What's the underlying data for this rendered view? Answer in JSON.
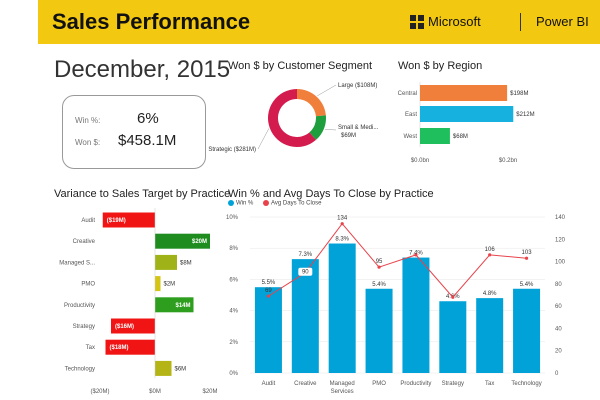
{
  "header": {
    "title": "Sales Performance",
    "brand": "Microsoft",
    "product": "Power BI",
    "color": "#f2c811"
  },
  "date_title": "December, 2015",
  "kpi": {
    "win_pct_label": "Win %:",
    "win_pct_value": "6%",
    "won_label": "Won $:",
    "won_value": "$458.1M"
  },
  "titles": {
    "segment": "Won $ by Customer Segment",
    "region": "Won $ by Region",
    "variance": "Variance to Sales Target by Practice",
    "winpct": "Win % and Avg Days To Close by Practice"
  },
  "chart_data": [
    {
      "type": "pie",
      "title": "Won $ by Customer Segment",
      "categories": [
        "Large",
        "Small & Medi...",
        "Strategic"
      ],
      "values": [
        108,
        69,
        281
      ],
      "data_labels": [
        "Large ($108M)",
        "Small & Medi... $69M",
        "Strategic ($281M)"
      ],
      "colors": [
        "#f07f3c",
        "#1f9e3e",
        "#d41b4d"
      ],
      "donut": true
    },
    {
      "type": "bar",
      "orientation": "horizontal",
      "title": "Won $ by Region",
      "categories": [
        "Central",
        "East",
        "West"
      ],
      "values": [
        198,
        212,
        68
      ],
      "data_labels": [
        "$198M",
        "$212M",
        "$68M"
      ],
      "colors": [
        "#f07f3c",
        "#17b1e0",
        "#1fbf5e"
      ],
      "xlim": [
        0,
        200
      ],
      "xticks": [
        "$0.0bn",
        "$0.2bn"
      ]
    },
    {
      "type": "bar",
      "orientation": "horizontal",
      "title": "Variance to Sales Target by Practice",
      "categories": [
        "Audit",
        "Creative",
        "Managed S...",
        "PMO",
        "Productivity",
        "Strategy",
        "Tax",
        "Technology"
      ],
      "values": [
        -19,
        20,
        8,
        2,
        14,
        -16,
        -18,
        6
      ],
      "data_labels": [
        "($19M)",
        "$20M",
        "$8M",
        "$2M",
        "$14M",
        "($16M)",
        "($18M)",
        "$6M"
      ],
      "colors": [
        "#f01414",
        "#1e8c1e",
        "#9fb218",
        "#d4c414",
        "#2e9e1e",
        "#f01414",
        "#f01414",
        "#b4b416"
      ],
      "xlim": [
        -20,
        20
      ],
      "xticks": [
        "($20M)",
        "$0M",
        "$20M"
      ]
    },
    {
      "type": "bar",
      "title": "Win % and Avg Days To Close by Practice",
      "categories": [
        "Audit",
        "Creative",
        "Managed Services",
        "PMO",
        "Productivity",
        "Strategy",
        "Tax",
        "Technology"
      ],
      "series": [
        {
          "name": "Win %",
          "type": "bar",
          "axis": "left",
          "color": "#00a2d8",
          "values": [
            5.5,
            7.3,
            8.3,
            5.4,
            7.4,
            4.6,
            4.8,
            5.4
          ],
          "labels": [
            "5.5%",
            "7.3%",
            "8.3%",
            "5.4%",
            "7.4%",
            "4.6%",
            "4.8%",
            "5.4%"
          ]
        },
        {
          "name": "Avg Days To Close",
          "type": "line",
          "axis": "right",
          "color": "#e8434b",
          "values": [
            69,
            90,
            134,
            95,
            106,
            68,
            106,
            103
          ],
          "labels": [
            "69",
            "90",
            "134",
            "95",
            "",
            "",
            "106",
            "103"
          ]
        }
      ],
      "ylim_left": [
        0,
        10
      ],
      "ylim_right": [
        0,
        140
      ],
      "yticks_left": [
        "0%",
        "2%",
        "4%",
        "6%",
        "8%",
        "10%"
      ],
      "yticks_right": [
        "0",
        "20",
        "40",
        "60",
        "80",
        "100",
        "120",
        "140"
      ]
    }
  ]
}
